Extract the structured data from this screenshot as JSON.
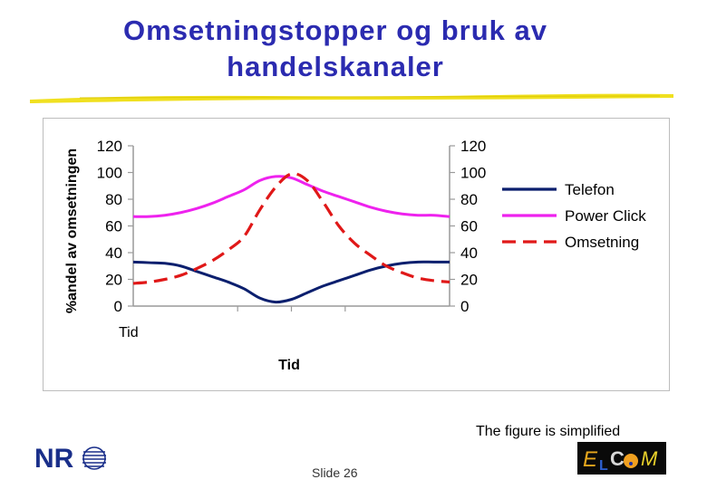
{
  "slide": {
    "title_line1": "Omsetningstopper og bruk av",
    "title_line2": "handelskanaler",
    "note": "The figure is simplified",
    "slide_number": "Slide 26",
    "logo_left": "NR",
    "logo_right": "ELCOM"
  },
  "colors": {
    "title": "#2b2bb0",
    "telefon": "#0b1f6e",
    "power_click": "#ee22ee",
    "omsetning": "#e01818",
    "rule": "#f0e020"
  },
  "chart_data": {
    "type": "line",
    "xlabel": "Tid",
    "x_tick_label": "Tid",
    "ylabel": "%andel av omsetningen",
    "ylim": [
      0,
      120
    ],
    "yticks": [
      0,
      20,
      40,
      60,
      80,
      100,
      120
    ],
    "legend_position": "right",
    "grid": false,
    "x": [
      0,
      0.5,
      1,
      1.5,
      2,
      2.5,
      3,
      3.5,
      4,
      4.5,
      5,
      5.5,
      6,
      6.5,
      7,
      7.5,
      8,
      8.5,
      9,
      9.5,
      10
    ],
    "series": [
      {
        "name": "Telefon",
        "style": "solid",
        "values": [
          33,
          32.5,
          32,
          30,
          26,
          22,
          18,
          13,
          6,
          3,
          5,
          10,
          15,
          19,
          23,
          27,
          30,
          32,
          33,
          33,
          33
        ]
      },
      {
        "name": "Power Click",
        "style": "solid",
        "values": [
          67,
          67,
          68,
          70,
          73,
          77,
          82,
          87,
          94,
          97,
          96,
          91,
          86,
          82,
          78,
          74,
          71,
          69,
          68,
          68,
          67
        ]
      },
      {
        "name": "Omsetning",
        "style": "dashed",
        "values": [
          17,
          18,
          20,
          23,
          28,
          34,
          42,
          52,
          72,
          89,
          99,
          94,
          78,
          60,
          47,
          38,
          30,
          25,
          21,
          19,
          18
        ]
      }
    ]
  }
}
